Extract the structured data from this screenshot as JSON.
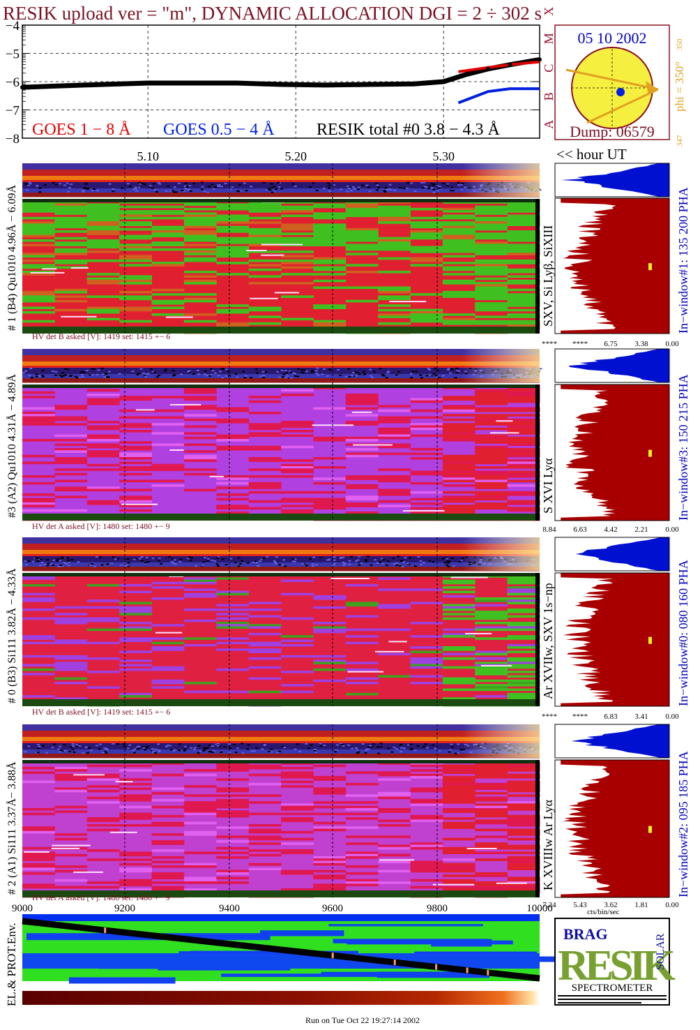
{
  "header": {
    "title": "RESIK upload ver = \"m\", DYNAMIC ALLOCATION  DGI =   2 ÷ 302 s",
    "run_info": "Run on Tue Oct 22 19:27:14 2002"
  },
  "colors": {
    "title": "#7a1020",
    "goes_long": "#e00000",
    "goes_short": "#0020e0",
    "resik_total": "#000000",
    "axis_blue": "#0000c0",
    "histogram_red": "#a80000",
    "histogram_blue": "#0010d0",
    "sun_yellow": "#f5ef40",
    "arrow_orange": "#e0a020"
  },
  "goes_panel": {
    "yticks": [
      "−4",
      "−5",
      "−6",
      "−7",
      "−8"
    ],
    "class_letters": [
      "A",
      "B",
      "C",
      "M",
      "X"
    ],
    "legend_goes_long": "GOES 1 − 8 Å",
    "legend_goes_short": "GOES 0.5 − 4 Å",
    "legend_resik": "RESIK total #0  3.8 − 4.3 Å",
    "time_ticks": [
      "5.10",
      "5.20",
      "5.30"
    ],
    "time_label": "<< hour UT"
  },
  "sun_panel": {
    "date": "05 10 2002",
    "dump": "Dump: 06579",
    "phi_label": "phi = 350°",
    "phi_sub": "350",
    "phi_bottom": "347"
  },
  "detectors": [
    {
      "left_label": "# 1 (B4) Qu1010 4.96Å − 6.09Å",
      "line_label": "SXV, Si Lyβ, SiXIII",
      "hv_label": "HV det B asked [V]:  1419 set:  1415 +−    6",
      "pha_label": "In−window#1:  135 200 PHA",
      "xticks": [
        "****",
        "****",
        "6.75",
        "3.38",
        "0.00"
      ]
    },
    {
      "left_label": "#3 (A2) Qu1010  4.31Å − 4.89Å",
      "line_label": "S XVI Lyα",
      "hv_label": "HV det A asked [V]:  1480 set:  1480 +−    9",
      "pha_label": "In−window#3:  150 215 PHA",
      "xticks": [
        "8.84",
        "6.63",
        "4.42",
        "2.21",
        "0.00"
      ]
    },
    {
      "left_label": "# 0 (B3) Si111  3.82Å − 4.33Å",
      "line_label": "Ar XVIIw,  SXV 1s−np",
      "hv_label": "HV det B asked [V]:  1419 set:  1415 +−    6",
      "pha_label": "In−window#0:  080 160 PHA",
      "xticks": [
        "****",
        "****",
        "6.83",
        "3.41",
        "0.00"
      ]
    },
    {
      "left_label": "# 2 (A1) Si111  3.37Å− 3.88Å",
      "line_label": "K XVIIIw  Ar Lyα",
      "hv_label": "HV det A asked [V]:  1480 set:  1480 +−    9",
      "pha_label": "In−window#2:  095 185 PHA",
      "xticks": [
        "7.24",
        "5.43",
        "3.62",
        "1.81",
        "0.00"
      ]
    }
  ],
  "bottom_axis": {
    "xticks": [
      "9000",
      "9200",
      "9400",
      "9600",
      "9800",
      "10000"
    ],
    "hist_xlabel": "cts/bin/sec",
    "env_label": "EL.& PROT.Env."
  },
  "logo": {
    "line1": "BRAG",
    "letters": "RESIK",
    "solar": "SOLAR",
    "caption": "SPECTROMETER"
  },
  "chart_data": {
    "type": "line",
    "title": "RESIK upload ver = \"m\", DYNAMIC ALLOCATION  DGI =   2 ÷ 302 s",
    "xlabel": "<< hour UT",
    "ylabel": "",
    "xlim": [
      5.015,
      5.365
    ],
    "ylim": [
      -8,
      -4
    ],
    "x_ticks": [
      5.1,
      5.2,
      5.3
    ],
    "series": [
      {
        "name": "RESIK total #0  3.8 − 4.3 Å",
        "x": [
          5.015,
          5.04,
          5.07,
          5.1,
          5.13,
          5.16,
          5.19,
          5.22,
          5.25,
          5.28,
          5.3,
          5.315,
          5.33,
          5.345,
          5.365
        ],
        "values": [
          -6.2,
          -6.15,
          -6.1,
          -6.05,
          -6.05,
          -6.05,
          -6.1,
          -6.12,
          -6.1,
          -6.08,
          -6.0,
          -5.75,
          -5.55,
          -5.4,
          -5.22
        ]
      },
      {
        "name": "GOES 1 − 8 Å",
        "x": [
          5.31,
          5.33,
          5.345,
          5.365
        ],
        "values": [
          -5.65,
          -5.5,
          -5.4,
          -5.3
        ]
      },
      {
        "name": "GOES 0.5 − 4 Å",
        "x": [
          5.31,
          5.33,
          5.345,
          5.365
        ],
        "values": [
          -6.75,
          -6.35,
          -6.25,
          -6.25
        ]
      }
    ]
  }
}
